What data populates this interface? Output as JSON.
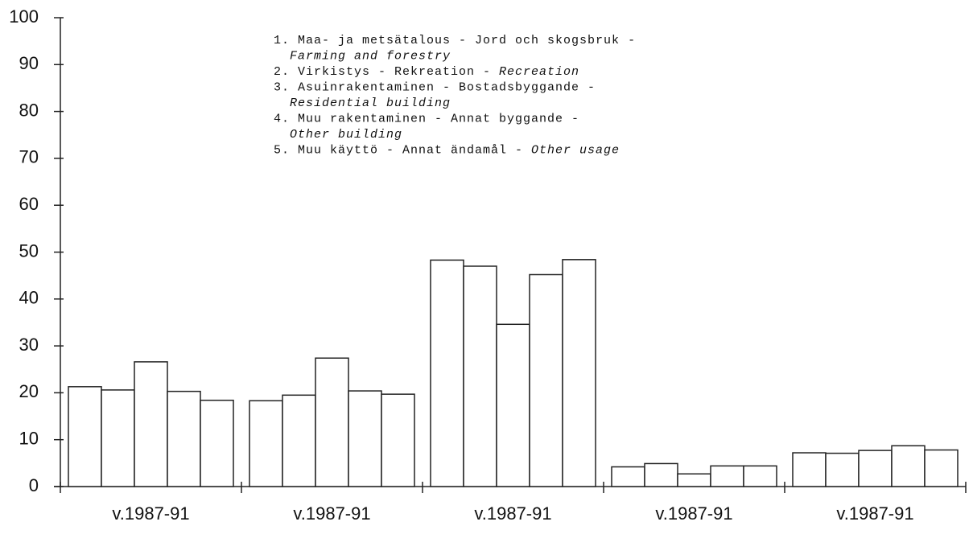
{
  "chart_data": {
    "type": "bar",
    "categories": [
      "v.1987-91",
      "v.1987-91",
      "v.1987-91",
      "v.1987-91",
      "v.1987-91"
    ],
    "series": [
      {
        "color": "#ffffff",
        "values": [
          21.3,
          18.3,
          48.3,
          4.2,
          7.2
        ]
      },
      {
        "color": "#ffffff",
        "values": [
          20.6,
          19.5,
          47.0,
          4.9,
          7.1
        ]
      },
      {
        "color": "#ffffff",
        "values": [
          26.6,
          27.4,
          34.6,
          2.7,
          7.7
        ]
      },
      {
        "color": "#ffffff",
        "values": [
          20.3,
          20.4,
          45.2,
          4.4,
          8.7
        ]
      },
      {
        "color": "#ffffff",
        "values": [
          18.4,
          19.7,
          48.4,
          4.4,
          7.8
        ]
      }
    ],
    "ylim": [
      0,
      100
    ],
    "yticks": [
      0,
      10,
      20,
      30,
      40,
      50,
      60,
      70,
      80,
      90,
      100
    ],
    "annotation": [
      {
        "text": "1. Maa- ja metsätalous - Jord och skogsbruk -"
      },
      {
        "italic": "Farming and forestry"
      },
      {
        "text": "2. Virkistys - Rekreation - ",
        "italic": "Recreation"
      },
      {
        "text": "3. Asuinrakentaminen - Bostadsbyggande -"
      },
      {
        "italic": "Residential building"
      },
      {
        "text": "4. Muu rakentaminen - Annat byggande -"
      },
      {
        "italic": "Other building"
      },
      {
        "text": "5. Muu käyttö - Annat ändamål - ",
        "italic": "Other usage"
      }
    ]
  }
}
